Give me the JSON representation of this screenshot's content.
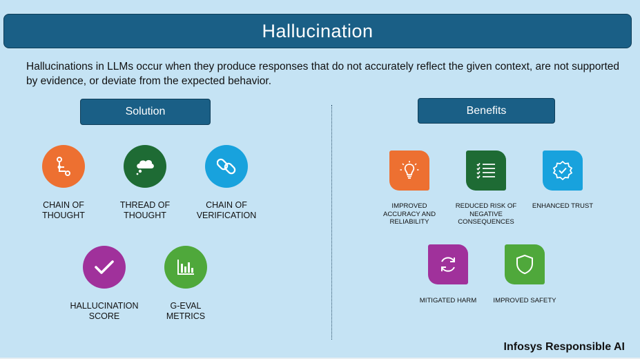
{
  "title": "Hallucination",
  "description": "Hallucinations in LLMs occur when they produce responses that do not accurately reflect the given context, are not supported by evidence, or deviate from the expected behavior.",
  "solution": {
    "heading": "Solution",
    "items": [
      {
        "label_1": "CHAIN OF",
        "label_2": "THOUGHT",
        "color": "#ed7031",
        "icon": "flow-diagram-icon"
      },
      {
        "label_1": "THREAD OF",
        "label_2": "THOUGHT",
        "color": "#1e6b34",
        "icon": "thought-cloud-icon"
      },
      {
        "label_1": "CHAIN OF",
        "label_2": "VERIFICATION",
        "color": "#18a2dd",
        "icon": "chain-link-icon"
      },
      {
        "label_1": "HALLUCINATION",
        "label_2": "SCORE",
        "color": "#a0319b",
        "icon": "checkmark-icon"
      },
      {
        "label_1": "G-EVAL",
        "label_2": "METRICS",
        "color": "#4fa83b",
        "icon": "bar-chart-icon"
      }
    ]
  },
  "benefits": {
    "heading": "Benefits",
    "items": [
      {
        "label_1": "IMPROVED",
        "label_2": "ACCURACY AND",
        "label_3": "RELIABILITY",
        "color": "#ed7031",
        "icon": "lightbulb-icon"
      },
      {
        "label_1": "REDUCED RISK OF",
        "label_2": "NEGATIVE",
        "label_3": "CONSEQUENCES",
        "color": "#1e6b34",
        "icon": "checklist-icon"
      },
      {
        "label_1": "ENHANCED TRUST",
        "color": "#18a2dd",
        "icon": "verified-badge-icon"
      },
      {
        "label_1": "MITIGATED HARM",
        "color": "#a0319b",
        "icon": "refresh-icon"
      },
      {
        "label_1": "IMPROVED SAFETY",
        "color": "#4fa83b",
        "icon": "shield-icon"
      }
    ]
  },
  "footer": {
    "brand": "Infosys Responsible AI"
  }
}
